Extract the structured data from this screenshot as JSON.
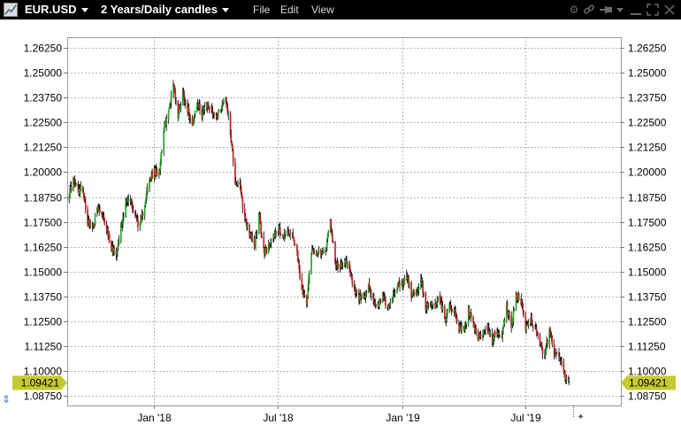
{
  "header": {
    "symbol": "EUR.USD",
    "period": "2 Years/Daily candles",
    "menu": {
      "file": "File",
      "edit": "Edit",
      "view": "View"
    },
    "icons": [
      "chart-app-icon",
      "gear-icon",
      "link-icon",
      "pin-icon",
      "dropdown-icon",
      "minimize-icon",
      "maximize-icon",
      "close-icon"
    ]
  },
  "chart_data": {
    "type": "candlestick",
    "symbol": "EUR.USD",
    "ylim": [
      1.0825,
      1.268
    ],
    "yticks": [
      1.0875,
      1.1,
      1.1125,
      1.125,
      1.1375,
      1.15,
      1.1625,
      1.175,
      1.1875,
      1.2,
      1.2125,
      1.225,
      1.2375,
      1.25,
      1.2625
    ],
    "ytick_labels": [
      "1.08750",
      "1.10000",
      "1.11250",
      "1.12500",
      "1.13750",
      "1.15000",
      "1.16250",
      "1.17500",
      "1.18750",
      "1.20000",
      "1.21250",
      "1.22500",
      "1.23750",
      "1.25000",
      "1.26250"
    ],
    "xlim": [
      "2017-08-26",
      "2019-11-18"
    ],
    "xticks": [
      {
        "label": "Jan '18",
        "date": "2018-01-01"
      },
      {
        "label": "Jul '18",
        "date": "2018-07-01"
      },
      {
        "label": "Jan '19",
        "date": "2019-01-01"
      },
      {
        "label": "Jul '19",
        "date": "2019-07-01"
      }
    ],
    "grid": true,
    "up_color": "#22a822",
    "down_color": "#cc2020",
    "last_price": 1.09421,
    "last_price_label": "1.09421",
    "price_tag_color": "#c8c832",
    "path": [
      [
        "2017-08-28",
        1.188
      ],
      [
        "2017-09-04",
        1.196
      ],
      [
        "2017-09-11",
        1.19
      ],
      [
        "2017-09-18",
        1.192
      ],
      [
        "2017-09-25",
        1.176
      ],
      [
        "2017-10-02",
        1.171
      ],
      [
        "2017-10-09",
        1.182
      ],
      [
        "2017-10-16",
        1.178
      ],
      [
        "2017-10-23",
        1.172
      ],
      [
        "2017-10-30",
        1.162
      ],
      [
        "2017-11-06",
        1.16
      ],
      [
        "2017-11-13",
        1.172
      ],
      [
        "2017-11-20",
        1.185
      ],
      [
        "2017-11-27",
        1.186
      ],
      [
        "2017-12-04",
        1.178
      ],
      [
        "2017-12-11",
        1.172
      ],
      [
        "2017-12-18",
        1.185
      ],
      [
        "2017-12-25",
        1.196
      ],
      [
        "2018-01-01",
        1.2
      ],
      [
        "2018-01-08",
        1.2
      ],
      [
        "2018-01-15",
        1.222
      ],
      [
        "2018-01-22",
        1.23
      ],
      [
        "2018-01-29",
        1.245
      ],
      [
        "2018-02-05",
        1.228
      ],
      [
        "2018-02-12",
        1.24
      ],
      [
        "2018-02-19",
        1.232
      ],
      [
        "2018-02-26",
        1.225
      ],
      [
        "2018-03-05",
        1.234
      ],
      [
        "2018-03-12",
        1.23
      ],
      [
        "2018-03-19",
        1.233
      ],
      [
        "2018-03-26",
        1.232
      ],
      [
        "2018-04-02",
        1.228
      ],
      [
        "2018-04-09",
        1.233
      ],
      [
        "2018-04-16",
        1.238
      ],
      [
        "2018-04-23",
        1.22
      ],
      [
        "2018-04-30",
        1.196
      ],
      [
        "2018-05-07",
        1.192
      ],
      [
        "2018-05-14",
        1.177
      ],
      [
        "2018-05-21",
        1.17
      ],
      [
        "2018-05-28",
        1.162
      ],
      [
        "2018-06-04",
        1.178
      ],
      [
        "2018-06-11",
        1.16
      ],
      [
        "2018-06-18",
        1.162
      ],
      [
        "2018-06-25",
        1.168
      ],
      [
        "2018-07-02",
        1.172
      ],
      [
        "2018-07-09",
        1.168
      ],
      [
        "2018-07-16",
        1.17
      ],
      [
        "2018-07-23",
        1.168
      ],
      [
        "2018-07-30",
        1.158
      ],
      [
        "2018-08-06",
        1.14
      ],
      [
        "2018-08-13",
        1.136
      ],
      [
        "2018-08-20",
        1.161
      ],
      [
        "2018-08-27",
        1.16
      ],
      [
        "2018-09-03",
        1.158
      ],
      [
        "2018-09-10",
        1.162
      ],
      [
        "2018-09-17",
        1.175
      ],
      [
        "2018-09-24",
        1.155
      ],
      [
        "2018-10-01",
        1.152
      ],
      [
        "2018-10-08",
        1.156
      ],
      [
        "2018-10-15",
        1.15
      ],
      [
        "2018-10-22",
        1.14
      ],
      [
        "2018-10-29",
        1.137
      ],
      [
        "2018-11-05",
        1.135
      ],
      [
        "2018-11-12",
        1.142
      ],
      [
        "2018-11-19",
        1.135
      ],
      [
        "2018-11-26",
        1.132
      ],
      [
        "2018-12-03",
        1.138
      ],
      [
        "2018-12-10",
        1.132
      ],
      [
        "2018-12-17",
        1.137
      ],
      [
        "2018-12-24",
        1.143
      ],
      [
        "2018-12-31",
        1.142
      ],
      [
        "2019-01-07",
        1.148
      ],
      [
        "2019-01-14",
        1.139
      ],
      [
        "2019-01-21",
        1.139
      ],
      [
        "2019-01-28",
        1.145
      ],
      [
        "2019-02-04",
        1.133
      ],
      [
        "2019-02-11",
        1.131
      ],
      [
        "2019-02-18",
        1.133
      ],
      [
        "2019-02-25",
        1.138
      ],
      [
        "2019-03-04",
        1.125
      ],
      [
        "2019-03-11",
        1.133
      ],
      [
        "2019-03-18",
        1.13
      ],
      [
        "2019-03-25",
        1.122
      ],
      [
        "2019-04-01",
        1.12
      ],
      [
        "2019-04-08",
        1.13
      ],
      [
        "2019-04-15",
        1.124
      ],
      [
        "2019-04-22",
        1.115
      ],
      [
        "2019-04-29",
        1.12
      ],
      [
        "2019-05-06",
        1.122
      ],
      [
        "2019-05-13",
        1.116
      ],
      [
        "2019-05-20",
        1.12
      ],
      [
        "2019-05-27",
        1.118
      ],
      [
        "2019-06-03",
        1.133
      ],
      [
        "2019-06-10",
        1.121
      ],
      [
        "2019-06-17",
        1.137
      ],
      [
        "2019-06-24",
        1.137
      ],
      [
        "2019-07-01",
        1.122
      ],
      [
        "2019-07-08",
        1.126
      ],
      [
        "2019-07-15",
        1.122
      ],
      [
        "2019-07-22",
        1.113
      ],
      [
        "2019-07-29",
        1.108
      ],
      [
        "2019-08-05",
        1.12
      ],
      [
        "2019-08-12",
        1.11
      ],
      [
        "2019-08-19",
        1.108
      ],
      [
        "2019-08-26",
        1.099
      ],
      [
        "2019-09-03",
        1.094
      ]
    ]
  }
}
